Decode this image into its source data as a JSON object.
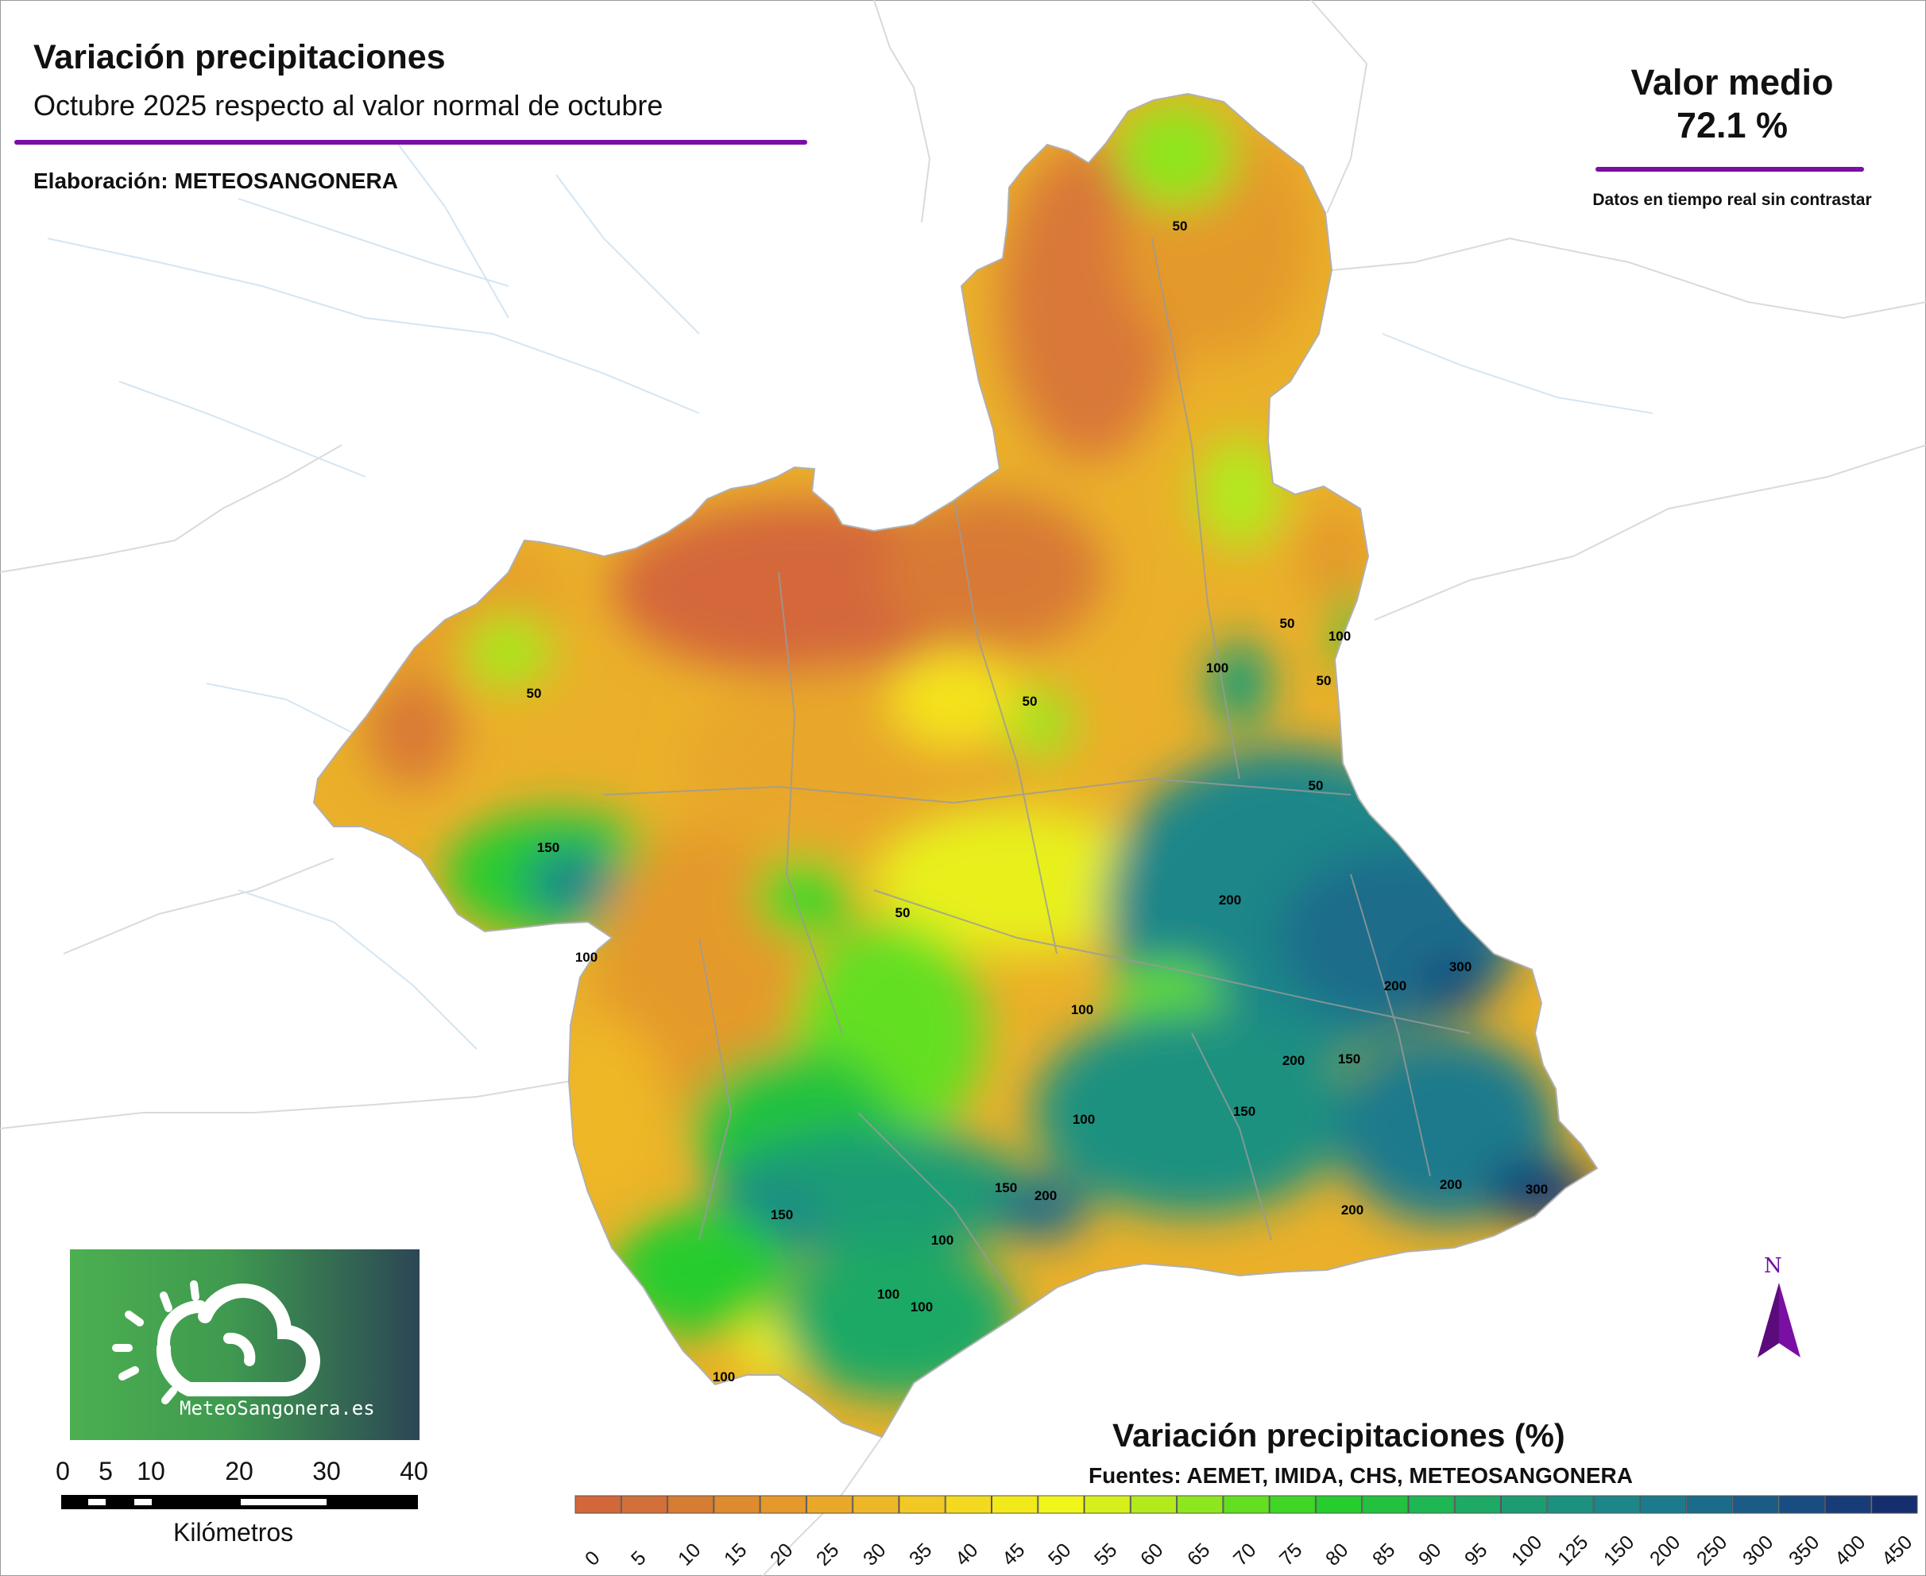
{
  "map": {
    "title": "Variación precipitaciones",
    "subtitle": "Octubre 2025 respecto al valor normal de octubre",
    "credit": "Elaboración: METEOSANGONERA",
    "mean_label": "Valor medio",
    "mean_value": "72.1 %",
    "note": "Datos en tiempo real sin contrastar",
    "accent_color": "#7a0fa3",
    "north_label": "N"
  },
  "logo": {
    "text": "MeteoSangonera.es",
    "icon": "sun-cloud-icon"
  },
  "scale": {
    "ticks": [
      "0",
      "5",
      "10",
      "20",
      "30",
      "40"
    ],
    "unit": "Kilómetros"
  },
  "legend": {
    "title": "Variación precipitaciones (%)",
    "sources": "Fuentes: AEMET, IMIDA, CHS, METEOSANGONERA",
    "classes": [
      {
        "label": "0",
        "color": "#d2683a"
      },
      {
        "label": "5",
        "color": "#d3703a"
      },
      {
        "label": "10",
        "color": "#d77c33"
      },
      {
        "label": "15",
        "color": "#de8a2e"
      },
      {
        "label": "20",
        "color": "#e5982b"
      },
      {
        "label": "25",
        "color": "#eaa82a"
      },
      {
        "label": "30",
        "color": "#eeb728"
      },
      {
        "label": "35",
        "color": "#f1c824"
      },
      {
        "label": "40",
        "color": "#f3d91f"
      },
      {
        "label": "45",
        "color": "#f2e91a"
      },
      {
        "label": "50",
        "color": "#f0f51a"
      },
      {
        "label": "55",
        "color": "#d5f01a"
      },
      {
        "label": "60",
        "color": "#b2ea1c"
      },
      {
        "label": "65",
        "color": "#8ee61f"
      },
      {
        "label": "70",
        "color": "#63df22"
      },
      {
        "label": "75",
        "color": "#3fd626"
      },
      {
        "label": "80",
        "color": "#27cc2f"
      },
      {
        "label": "85",
        "color": "#22c23e"
      },
      {
        "label": "90",
        "color": "#1fb654"
      },
      {
        "label": "95",
        "color": "#1ea965"
      },
      {
        "label": "100",
        "color": "#1d9c74"
      },
      {
        "label": "125",
        "color": "#1d9180"
      },
      {
        "label": "150",
        "color": "#1d8689"
      },
      {
        "label": "200",
        "color": "#1b7a8c"
      },
      {
        "label": "250",
        "color": "#1a6c8a"
      },
      {
        "label": "300",
        "color": "#1a5c86"
      },
      {
        "label": "350",
        "color": "#194c80"
      },
      {
        "label": "400",
        "color": "#173c78"
      },
      {
        "label": "450",
        "color": "#152e6e"
      }
    ]
  },
  "contour_labels": [
    "50",
    "50",
    "50",
    "50",
    "50",
    "50",
    "50",
    "100",
    "100",
    "100",
    "100",
    "100",
    "100",
    "100",
    "100",
    "100",
    "150",
    "150",
    "150",
    "150",
    "150",
    "200",
    "200",
    "200",
    "200",
    "200",
    "200",
    "300",
    "300"
  ]
}
